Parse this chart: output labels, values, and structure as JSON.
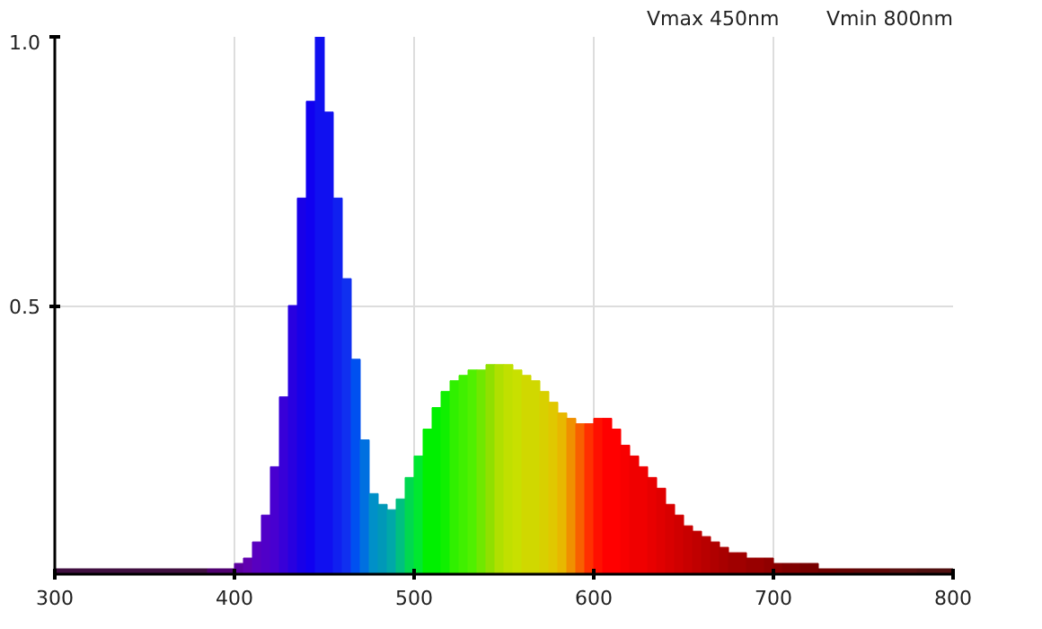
{
  "chart_data": {
    "type": "histogram",
    "annotations": [
      "Vmax 450nm",
      "Vmin 800nm"
    ],
    "bins": [
      300,
      305,
      310,
      315,
      320,
      325,
      330,
      335,
      340,
      345,
      350,
      355,
      360,
      365,
      370,
      375,
      380,
      385,
      390,
      395,
      400,
      405,
      410,
      415,
      420,
      425,
      430,
      435,
      440,
      445,
      450,
      455,
      460,
      465,
      470,
      475,
      480,
      485,
      490,
      495,
      500,
      505,
      510,
      515,
      520,
      525,
      530,
      535,
      540,
      545,
      550,
      555,
      560,
      565,
      570,
      575,
      580,
      585,
      590,
      595,
      600,
      605,
      610,
      615,
      620,
      625,
      630,
      635,
      640,
      645,
      650,
      655,
      660,
      665,
      670,
      675,
      680,
      685,
      690,
      695,
      700,
      705,
      710,
      715,
      720,
      725,
      730,
      735,
      740,
      745,
      750,
      755,
      760,
      765,
      770,
      775,
      780,
      785,
      790,
      795,
      800
    ],
    "values": [
      0.01,
      0.01,
      0.01,
      0.01,
      0.01,
      0.01,
      0.01,
      0.01,
      0.01,
      0.01,
      0.01,
      0.01,
      0.01,
      0.01,
      0.01,
      0.01,
      0.01,
      0.01,
      0.01,
      0.01,
      0.02,
      0.03,
      0.06,
      0.11,
      0.2,
      0.33,
      0.5,
      0.7,
      0.88,
      1.0,
      0.86,
      0.7,
      0.55,
      0.4,
      0.25,
      0.15,
      0.13,
      0.12,
      0.14,
      0.18,
      0.22,
      0.27,
      0.31,
      0.34,
      0.36,
      0.37,
      0.38,
      0.38,
      0.39,
      0.39,
      0.39,
      0.38,
      0.37,
      0.36,
      0.34,
      0.32,
      0.3,
      0.29,
      0.28,
      0.28,
      0.29,
      0.29,
      0.27,
      0.24,
      0.22,
      0.2,
      0.18,
      0.16,
      0.13,
      0.11,
      0.09,
      0.08,
      0.07,
      0.06,
      0.05,
      0.04,
      0.04,
      0.03,
      0.03,
      0.03,
      0.02,
      0.02,
      0.02,
      0.02,
      0.02,
      0.01,
      0.01,
      0.01,
      0.01,
      0.01,
      0.01,
      0.01,
      0.01,
      0.01,
      0.01,
      0.01,
      0.01,
      0.01,
      0.01,
      0.01
    ],
    "colors": [
      "#401040",
      "#401040",
      "#401040",
      "#401040",
      "#401040",
      "#401040",
      "#401040",
      "#401040",
      "#401040",
      "#401040",
      "#401040",
      "#401040",
      "#401040",
      "#401040",
      "#401040",
      "#401040",
      "#401040",
      "#500070",
      "#500070",
      "#500070",
      "#5c00a0",
      "#6000b0",
      "#5800c0",
      "#5000c8",
      "#4800d0",
      "#3800d8",
      "#2800e0",
      "#1800e8",
      "#1000f0",
      "#1010f0",
      "#1010f0",
      "#1020f0",
      "#1030f0",
      "#0050f0",
      "#0070e0",
      "#0090c8",
      "#0098b8",
      "#00a8a8",
      "#00c080",
      "#00d850",
      "#00e830",
      "#00f000",
      "#00f000",
      "#10f000",
      "#30f000",
      "#40f000",
      "#50f000",
      "#70e800",
      "#90e000",
      "#b0e000",
      "#c0e000",
      "#c8e000",
      "#d0d800",
      "#d0d800",
      "#d8d000",
      "#e0c800",
      "#e8b800",
      "#f09000",
      "#f86000",
      "#ff3000",
      "#ff1000",
      "#ff0000",
      "#ff0000",
      "#f80000",
      "#f00000",
      "#f00000",
      "#e80000",
      "#e00000",
      "#d80000",
      "#d00000",
      "#c80000",
      "#c00000",
      "#b80000",
      "#b00000",
      "#a80000",
      "#a00000",
      "#a00000",
      "#980000",
      "#980000",
      "#900000",
      "#880000",
      "#800000",
      "#800000",
      "#780000",
      "#780000",
      "#700000",
      "#700000",
      "#680404",
      "#680404",
      "#600808",
      "#600808",
      "#600808",
      "#600808",
      "#581010",
      "#581010",
      "#581010",
      "#501010",
      "#501010",
      "#501010",
      "#501010"
    ],
    "xlim": [
      300,
      800
    ],
    "ylim": [
      0,
      1
    ],
    "xticks": [
      300,
      400,
      500,
      600,
      700,
      800
    ],
    "yticks": [
      0.5,
      {
        "value": 1,
        "label": "1.0"
      }
    ],
    "grid": true
  }
}
